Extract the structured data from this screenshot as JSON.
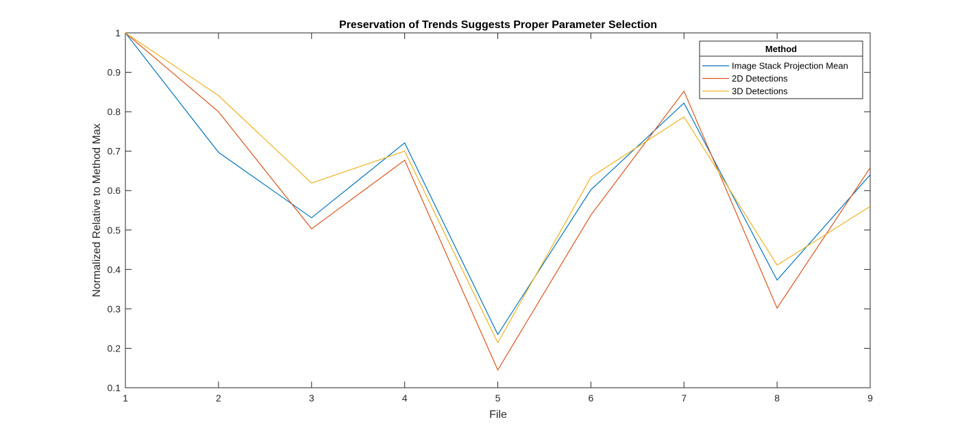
{
  "chart_data": {
    "type": "line",
    "title": "Preservation of Trends Suggests Proper Parameter Selection",
    "xlabel": "File",
    "ylabel": "Normalized Relative to Method Max",
    "x": [
      1,
      2,
      3,
      4,
      5,
      6,
      7,
      8,
      9
    ],
    "xlim": [
      1,
      9
    ],
    "ylim": [
      0.1,
      1
    ],
    "xticks": [
      "1",
      "2",
      "3",
      "4",
      "5",
      "6",
      "7",
      "8",
      "9"
    ],
    "yticks": [
      "0.1",
      "0.2",
      "0.3",
      "0.4",
      "0.5",
      "0.6",
      "0.7",
      "0.8",
      "0.9",
      "1"
    ],
    "grid": false,
    "legend": {
      "title": "Method",
      "position": "top-right"
    },
    "series": [
      {
        "name": "Image Stack Projection Mean",
        "color": "#0072BD",
        "values": [
          1.0,
          0.697,
          0.531,
          0.721,
          0.235,
          0.602,
          0.822,
          0.373,
          0.64
        ]
      },
      {
        "name": "2D Detections",
        "color": "#D95319",
        "values": [
          1.0,
          0.8,
          0.503,
          0.677,
          0.145,
          0.538,
          0.852,
          0.302,
          0.658
        ]
      },
      {
        "name": "3D Detections",
        "color": "#EDB120",
        "values": [
          1.0,
          0.841,
          0.619,
          0.7,
          0.214,
          0.634,
          0.787,
          0.411,
          0.56
        ]
      }
    ]
  }
}
